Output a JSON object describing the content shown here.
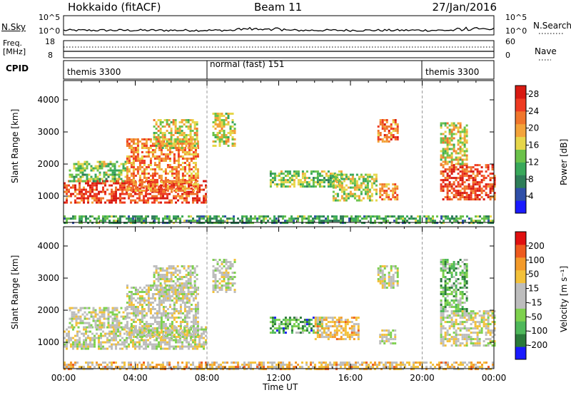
{
  "header": {
    "station": "Hokkaido (fitACF)",
    "beam": "Beam 11",
    "date": "27/Jan/2016"
  },
  "top_panels": {
    "nsky_label": "N.Sky",
    "nsky_ticks": [
      "10^5",
      "10^0"
    ],
    "nsearch_label": "N.Search",
    "nsearch_ticks": [
      "10^5",
      "10^0"
    ],
    "freq_label": "Freq.",
    "freq_unit": "[MHz]",
    "freq_ticks": [
      "18",
      "8"
    ],
    "nave_label": "Nave",
    "nave_ticks": [
      "60",
      "0"
    ],
    "cpid_label": "CPID",
    "cpid_segments": [
      {
        "name": "themis 3300",
        "start_h": 0,
        "end_h": 8
      },
      {
        "name": "normal (fast) 151",
        "start_h": 8,
        "end_h": 20
      },
      {
        "name": "themis 3300",
        "start_h": 20,
        "end_h": 24
      }
    ]
  },
  "colors": {
    "power_scale": [
      "#1a1aff",
      "#2f4fa8",
      "#2e7d58",
      "#39a85a",
      "#6bc24a",
      "#e6d64a",
      "#f3a33a",
      "#f0762c",
      "#ee3b22",
      "#d81a12"
    ],
    "velocity_scale": [
      "#1a1aff",
      "#2b7a3a",
      "#4fb85a",
      "#7ed14e",
      "#bdbdbd",
      "#bdbdbd",
      "#f3c13a",
      "#f39a2a",
      "#ee5a1e",
      "#e01010"
    ]
  },
  "chart_data": [
    {
      "type": "heatmap",
      "title": "Power",
      "xlabel": "",
      "ylabel": "Slant Range [km]",
      "x_range_hours": [
        0,
        24
      ],
      "ylim": [
        180,
        4600
      ],
      "yticks": [
        "1000",
        "2000",
        "3000",
        "4000"
      ],
      "colorbar": {
        "label": "Power [dB]",
        "ticks": [
          "4",
          "8",
          "12",
          "16",
          "20",
          "24",
          "28"
        ],
        "range": [
          0,
          30
        ]
      },
      "regions": [
        {
          "t0": 0.0,
          "t1": 7.9,
          "r0": 800,
          "r1": 1500,
          "level": 0.85
        },
        {
          "t0": 0.3,
          "t1": 3.5,
          "r0": 1500,
          "r1": 2100,
          "level": 0.45
        },
        {
          "t0": 3.5,
          "t1": 7.5,
          "r0": 1200,
          "r1": 2800,
          "level": 0.7
        },
        {
          "t0": 5.0,
          "t1": 7.5,
          "r0": 2500,
          "r1": 3400,
          "level": 0.55
        },
        {
          "t0": 8.3,
          "t1": 9.5,
          "r0": 2600,
          "r1": 3600,
          "level": 0.55
        },
        {
          "t0": 11.5,
          "t1": 15.5,
          "r0": 1300,
          "r1": 1800,
          "level": 0.45
        },
        {
          "t0": 15.0,
          "t1": 17.5,
          "r0": 900,
          "r1": 1700,
          "level": 0.5
        },
        {
          "t0": 17.5,
          "t1": 18.6,
          "r0": 2700,
          "r1": 3400,
          "level": 0.75
        },
        {
          "t0": 17.6,
          "t1": 18.6,
          "r0": 900,
          "r1": 1400,
          "level": 0.7
        },
        {
          "t0": 21.0,
          "t1": 24.0,
          "r0": 900,
          "r1": 2000,
          "level": 0.85
        },
        {
          "t0": 21.0,
          "t1": 22.5,
          "r0": 2000,
          "r1": 3300,
          "level": 0.55
        },
        {
          "t0": 0.0,
          "t1": 24.0,
          "r0": 200,
          "r1": 400,
          "level": 0.35
        }
      ]
    },
    {
      "type": "heatmap",
      "title": "Velocity",
      "xlabel": "Time UT",
      "ylabel": "Slant Range [km]",
      "x_range_hours": [
        0,
        24
      ],
      "ylim": [
        180,
        4600
      ],
      "xticks": [
        "00:00",
        "04:00",
        "08:00",
        "12:00",
        "16:00",
        "20:00",
        "00:00"
      ],
      "yticks": [
        "1000",
        "2000",
        "3000",
        "4000"
      ],
      "colorbar": {
        "label": "Velocity [m s⁻¹]",
        "ticks": [
          "200",
          "100",
          "50",
          "15",
          "-15",
          "-50",
          "-100",
          "-200"
        ],
        "range": [
          -250,
          250
        ]
      },
      "regions": [
        {
          "t0": 0.0,
          "t1": 7.9,
          "r0": 800,
          "r1": 1500,
          "level": 0.5
        },
        {
          "t0": 0.3,
          "t1": 3.5,
          "r0": 1500,
          "r1": 2100,
          "level": 0.5
        },
        {
          "t0": 3.5,
          "t1": 7.5,
          "r0": 1200,
          "r1": 2800,
          "level": 0.5
        },
        {
          "t0": 5.0,
          "t1": 7.5,
          "r0": 2500,
          "r1": 3400,
          "level": 0.5
        },
        {
          "t0": 8.3,
          "t1": 9.5,
          "r0": 2600,
          "r1": 3600,
          "level": 0.5
        },
        {
          "t0": 11.5,
          "t1": 14.5,
          "r0": 1300,
          "r1": 1800,
          "level": 0.25
        },
        {
          "t0": 14.0,
          "t1": 16.5,
          "r0": 1100,
          "r1": 1800,
          "level": 0.65
        },
        {
          "t0": 17.5,
          "t1": 18.6,
          "r0": 2700,
          "r1": 3400,
          "level": 0.5
        },
        {
          "t0": 17.6,
          "t1": 18.6,
          "r0": 1000,
          "r1": 1400,
          "level": 0.5
        },
        {
          "t0": 21.0,
          "t1": 24.0,
          "r0": 900,
          "r1": 2000,
          "level": 0.5
        },
        {
          "t0": 21.0,
          "t1": 22.5,
          "r0": 2000,
          "r1": 3600,
          "level": 0.3
        },
        {
          "t0": 0.0,
          "t1": 24.0,
          "r0": 200,
          "r1": 400,
          "level": 0.65
        }
      ]
    }
  ]
}
